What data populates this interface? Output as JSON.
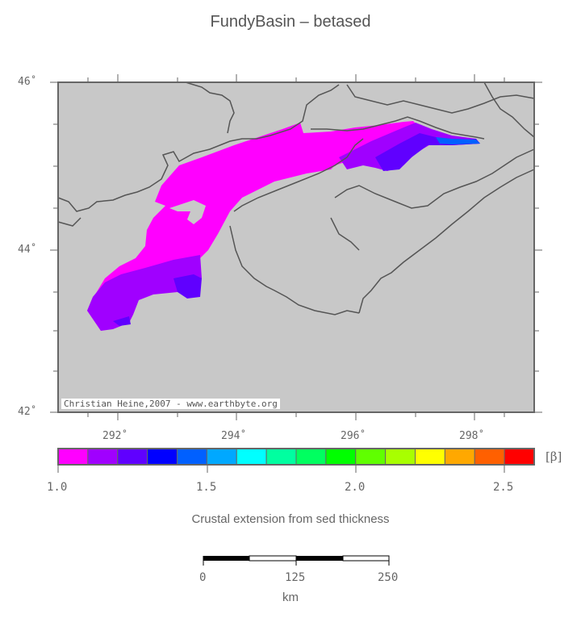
{
  "title": "FundyBasin – betased",
  "map": {
    "lat_labels": [
      "46˚",
      "44˚",
      "42˚"
    ],
    "lon_labels": [
      "292˚",
      "294˚",
      "296˚",
      "298˚"
    ],
    "land_color": "#c8c8c8",
    "coast_color": "#555555",
    "credit": "Christian Heine,2007 - www.earthbyte.org"
  },
  "colorbar": {
    "colors": [
      "#ff00ff",
      "#a000ff",
      "#6000ff",
      "#0000ff",
      "#0060ff",
      "#00a8ff",
      "#00ffff",
      "#00ffa0",
      "#00ff60",
      "#00ff00",
      "#60ff00",
      "#a8ff00",
      "#ffff00",
      "#ffa800",
      "#ff6000",
      "#ff0000"
    ],
    "tick_labels": [
      "1.0",
      "1.5",
      "2.0",
      "2.5"
    ],
    "unit": "[β]"
  },
  "caption": "Crustal extension from sed thickness",
  "scalebar": {
    "labels": [
      "0",
      "125",
      "250"
    ],
    "unit": "km"
  }
}
